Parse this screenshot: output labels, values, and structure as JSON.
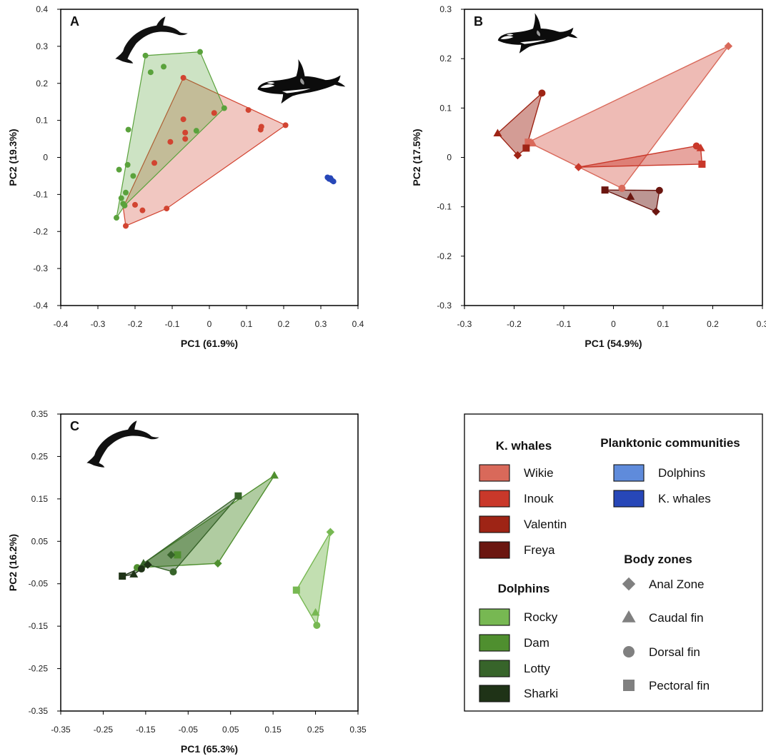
{
  "colors": {
    "Wikie": "#d9695a",
    "Inouk": "#c9382a",
    "Valentin": "#9e2415",
    "Freya": "#6b1610",
    "Rocky": "#77b852",
    "Dam": "#4f8f2f",
    "Lotty": "#37642a",
    "Sharki": "#1f3317",
    "PlankDolphins": "#5f8bdb",
    "PlankWhales": "#2747b8",
    "whalesA": "#d24431",
    "dolphinsA": "#5aa23c"
  },
  "chart_data": [
    {
      "panel": "A",
      "type": "scatter",
      "xlabel": "PC1 (61.9%)",
      "ylabel": "PC2 (19.3%)",
      "xlim": [
        -0.4,
        0.4
      ],
      "ylim": [
        -0.4,
        0.4
      ],
      "xticks": [
        "-0.4",
        "-0.3",
        "-0.2",
        "-0.1",
        "0",
        "0.1",
        "0.2",
        "0.3",
        "0.4"
      ],
      "yticks": [
        "0.4",
        "0.3",
        "0.2",
        "0.1",
        "0",
        "-0.1",
        "-0.2",
        "-0.3",
        "-0.4"
      ],
      "icons": [
        "dolphin-icon",
        "orca-icon"
      ],
      "series": [
        {
          "group": "K. whales",
          "color": "whalesA",
          "points": [
            [
              -0.225,
              -0.185
            ],
            [
              -0.2,
              -0.128
            ],
            [
              -0.18,
              -0.143
            ],
            [
              -0.115,
              -0.138
            ],
            [
              -0.07,
              0.215
            ],
            [
              -0.07,
              0.103
            ],
            [
              -0.065,
              0.067
            ],
            [
              -0.065,
              0.05
            ],
            [
              -0.105,
              0.042
            ],
            [
              -0.148,
              -0.015
            ],
            [
              0.013,
              0.12
            ],
            [
              0.105,
              0.128
            ],
            [
              0.138,
              0.075
            ],
            [
              0.14,
              0.083
            ],
            [
              0.205,
              0.087
            ]
          ],
          "hull": [
            [
              -0.225,
              -0.185
            ],
            [
              -0.115,
              -0.138
            ],
            [
              0.205,
              0.087
            ],
            [
              -0.07,
              0.215
            ],
            [
              -0.232,
              -0.135
            ]
          ]
        },
        {
          "group": "Dolphins",
          "color": "dolphinsA",
          "points": [
            [
              -0.25,
              -0.163
            ],
            [
              -0.243,
              -0.033
            ],
            [
              -0.237,
              -0.11
            ],
            [
              -0.232,
              -0.125
            ],
            [
              -0.228,
              -0.13
            ],
            [
              -0.225,
              -0.095
            ],
            [
              -0.22,
              -0.02
            ],
            [
              -0.218,
              0.075
            ],
            [
              -0.205,
              -0.05
            ],
            [
              -0.172,
              0.275
            ],
            [
              -0.158,
              0.23
            ],
            [
              -0.123,
              0.245
            ],
            [
              -0.025,
              0.285
            ],
            [
              -0.035,
              0.072
            ],
            [
              0.04,
              0.133
            ]
          ],
          "hull": [
            [
              -0.25,
              -0.163
            ],
            [
              -0.172,
              0.275
            ],
            [
              -0.025,
              0.285
            ],
            [
              0.04,
              0.133
            ],
            [
              -0.228,
              -0.13
            ]
          ]
        },
        {
          "group": "Planktonic communities",
          "color": "PlankWhales",
          "points": [
            [
              0.318,
              -0.054
            ],
            [
              0.322,
              -0.058
            ],
            [
              0.326,
              -0.056
            ],
            [
              0.33,
              -0.062
            ],
            [
              0.334,
              -0.065
            ]
          ]
        }
      ]
    },
    {
      "panel": "B",
      "type": "scatter",
      "xlabel": "PC1 (54.9%)",
      "ylabel": "PC2 (17.5%)",
      "xlim": [
        -0.35,
        0.35
      ],
      "ylim": [
        -0.35,
        0.35
      ],
      "xticks": [
        "-0.3",
        "-0.2",
        "-0.1",
        "0",
        "0.1",
        "0.2",
        "0.3"
      ],
      "yticks": [
        "0.3",
        "0.2",
        "0.1",
        "0",
        "-0.1",
        "-0.2",
        "-0.3"
      ],
      "icons": [
        "orca-icon"
      ],
      "series": [
        {
          "name": "Wikie",
          "points": [
            {
              "x": 0.27,
              "y": 0.263,
              "shape": "diamond"
            },
            {
              "x": -0.2,
              "y": 0.036,
              "shape": "square"
            },
            {
              "x": -0.19,
              "y": 0.033,
              "shape": "triangle"
            },
            {
              "x": 0.02,
              "y": -0.073,
              "shape": "circle"
            }
          ]
        },
        {
          "name": "Inouk",
          "points": [
            {
              "x": -0.082,
              "y": -0.023,
              "shape": "diamond"
            },
            {
              "x": 0.208,
              "y": -0.016,
              "shape": "square"
            },
            {
              "x": 0.205,
              "y": 0.022,
              "shape": "triangle"
            },
            {
              "x": 0.195,
              "y": 0.027,
              "shape": "circle"
            }
          ]
        },
        {
          "name": "Valentin",
          "points": [
            {
              "x": -0.225,
              "y": 0.005,
              "shape": "diamond"
            },
            {
              "x": -0.205,
              "y": 0.022,
              "shape": "square"
            },
            {
              "x": -0.272,
              "y": 0.057,
              "shape": "triangle"
            },
            {
              "x": -0.168,
              "y": 0.152,
              "shape": "circle"
            }
          ]
        },
        {
          "name": "Freya",
          "points": [
            {
              "x": 0.1,
              "y": -0.128,
              "shape": "diamond"
            },
            {
              "x": -0.02,
              "y": -0.077,
              "shape": "square"
            },
            {
              "x": 0.04,
              "y": -0.093,
              "shape": "triangle"
            },
            {
              "x": 0.108,
              "y": -0.078,
              "shape": "circle"
            }
          ]
        }
      ]
    },
    {
      "panel": "C",
      "type": "scatter",
      "xlabel": "PC1 (65.3%)",
      "ylabel": "PC2 (16.2%)",
      "xlim": [
        -0.35,
        0.35
      ],
      "ylim": [
        -0.35,
        0.35
      ],
      "xticks": [
        "-0.35",
        "-0.25",
        "-0.15",
        "-0.05",
        "0.05",
        "0.15",
        "0.25",
        "0.35"
      ],
      "yticks": [
        "0.35",
        "0.25",
        "0.15",
        "0.05",
        "-0.05",
        "-0.15",
        "-0.25",
        "-0.35"
      ],
      "icons": [
        "dolphin-icon"
      ],
      "series": [
        {
          "name": "Rocky",
          "points": [
            {
              "x": 0.285,
              "y": 0.072,
              "shape": "diamond"
            },
            {
              "x": 0.205,
              "y": -0.065,
              "shape": "square"
            },
            {
              "x": 0.25,
              "y": -0.118,
              "shape": "triangle"
            },
            {
              "x": 0.253,
              "y": -0.148,
              "shape": "circle"
            }
          ]
        },
        {
          "name": "Dam",
          "points": [
            {
              "x": 0.02,
              "y": -0.002,
              "shape": "diamond"
            },
            {
              "x": -0.075,
              "y": 0.018,
              "shape": "square"
            },
            {
              "x": 0.153,
              "y": 0.205,
              "shape": "triangle"
            },
            {
              "x": -0.17,
              "y": -0.012,
              "shape": "circle"
            }
          ]
        },
        {
          "name": "Lotty",
          "points": [
            {
              "x": -0.09,
              "y": 0.018,
              "shape": "diamond"
            },
            {
              "x": 0.068,
              "y": 0.157,
              "shape": "square"
            },
            {
              "x": -0.155,
              "y": -0.002,
              "shape": "triangle"
            },
            {
              "x": -0.085,
              "y": -0.022,
              "shape": "circle"
            }
          ]
        },
        {
          "name": "Sharki",
          "points": [
            {
              "x": -0.145,
              "y": -0.005,
              "shape": "diamond"
            },
            {
              "x": -0.205,
              "y": -0.032,
              "shape": "square"
            },
            {
              "x": -0.178,
              "y": -0.028,
              "shape": "triangle"
            },
            {
              "x": -0.16,
              "y": -0.015,
              "shape": "circle"
            }
          ]
        }
      ]
    }
  ],
  "legend": {
    "whales_heading": "K. whales",
    "whales": [
      "Wikie",
      "Inouk",
      "Valentin",
      "Freya"
    ],
    "dolphins_heading": "Dolphins",
    "dolphins": [
      "Rocky",
      "Dam",
      "Lotty",
      "Sharki"
    ],
    "plankton_heading": "Planktonic communities",
    "plankton": [
      "Dolphins",
      "K. whales"
    ],
    "zones_heading": "Body zones",
    "zones": [
      {
        "label": "Anal Zone",
        "shape": "diamond"
      },
      {
        "label": "Caudal fin",
        "shape": "triangle"
      },
      {
        "label": "Dorsal fin",
        "shape": "circle"
      },
      {
        "label": "Pectoral fin",
        "shape": "square"
      }
    ]
  }
}
